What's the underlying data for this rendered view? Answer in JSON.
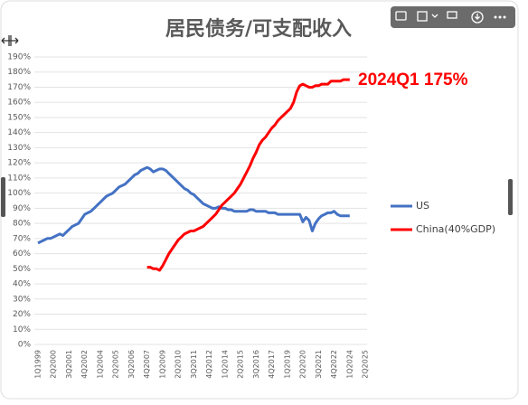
{
  "chart_data": {
    "type": "line",
    "title": "居民债务/可支配收入",
    "annotation": "2024Q1 175%",
    "categories": [
      "1Q1999",
      null,
      null,
      null,
      null,
      "2Q2000",
      null,
      null,
      null,
      null,
      "3Q2001",
      null,
      null,
      null,
      null,
      "4Q2002",
      null,
      null,
      null,
      null,
      "1Q2004",
      null,
      null,
      null,
      null,
      "2Q2005",
      null,
      null,
      null,
      null,
      "3Q2006",
      null,
      null,
      null,
      null,
      "4Q2007",
      null,
      null,
      null,
      null,
      "1Q2009",
      null,
      null,
      null,
      null,
      "2Q2010",
      null,
      null,
      null,
      null,
      "3Q2011",
      null,
      null,
      null,
      null,
      "4Q2012",
      null,
      null,
      null,
      null,
      "1Q2014",
      null,
      null,
      null,
      null,
      "2Q2015",
      null,
      null,
      null,
      null,
      "3Q2016",
      null,
      null,
      null,
      null,
      "4Q2017",
      null,
      null,
      null,
      null,
      "1Q2019",
      null,
      null,
      null,
      null,
      "2Q2020",
      null,
      null,
      null,
      null,
      "3Q2021",
      null,
      null,
      null,
      null,
      "4Q2022",
      null,
      null,
      null,
      null,
      "1Q2024",
      null,
      null,
      null,
      null,
      "2Q2025"
    ],
    "series": [
      {
        "name": "US",
        "color": "#4472c4",
        "values": [
          67,
          68,
          69,
          70,
          70,
          71,
          72,
          73,
          72,
          74,
          76,
          78,
          79,
          80,
          83,
          86,
          87,
          88,
          90,
          92,
          94,
          96,
          98,
          99,
          100,
          102,
          104,
          105,
          106,
          108,
          110,
          112,
          113,
          115,
          116,
          117,
          116,
          114,
          115,
          116,
          116,
          115,
          113,
          111,
          109,
          107,
          105,
          103,
          102,
          100,
          99,
          97,
          95,
          93,
          92,
          91,
          90,
          90,
          91,
          90,
          90,
          89,
          89,
          88,
          88,
          88,
          88,
          88,
          89,
          89,
          88,
          88,
          88,
          88,
          87,
          87,
          87,
          86,
          86,
          86,
          86,
          86,
          86,
          86,
          86,
          81,
          84,
          82,
          75,
          80,
          83,
          85,
          86,
          87,
          87,
          88,
          86,
          85,
          85,
          85,
          85,
          null,
          null,
          null,
          null,
          null
        ]
      },
      {
        "name": "China(40%GDP)",
        "color": "#ff0000",
        "values": [
          null,
          null,
          null,
          null,
          null,
          null,
          null,
          null,
          null,
          null,
          null,
          null,
          null,
          null,
          null,
          null,
          null,
          null,
          null,
          null,
          null,
          null,
          null,
          null,
          null,
          null,
          null,
          null,
          null,
          null,
          null,
          null,
          null,
          null,
          null,
          51,
          51,
          50,
          50,
          49,
          52,
          56,
          60,
          63,
          66,
          69,
          71,
          73,
          74,
          75,
          75,
          76,
          77,
          78,
          80,
          82,
          84,
          86,
          89,
          92,
          94,
          96,
          98,
          100,
          103,
          106,
          110,
          114,
          118,
          123,
          127,
          132,
          135,
          137,
          140,
          143,
          145,
          148,
          150,
          152,
          154,
          156,
          160,
          167,
          171,
          172,
          171,
          170,
          170,
          171,
          171,
          172,
          172,
          172,
          174,
          174,
          174,
          174,
          175,
          175,
          175,
          null,
          null,
          null,
          null,
          null
        ]
      }
    ],
    "ylim": [
      0,
      190
    ],
    "yticks": [
      {
        "value": 0,
        "label": "0%"
      },
      {
        "value": 10,
        "label": "10%"
      },
      {
        "value": 20,
        "label": "20%"
      },
      {
        "value": 30,
        "label": "30%"
      },
      {
        "value": 40,
        "label": "40%"
      },
      {
        "value": 50,
        "label": "50%"
      },
      {
        "value": 60,
        "label": "60%"
      },
      {
        "value": 70,
        "label": "70%"
      },
      {
        "value": 80,
        "label": "80%"
      },
      {
        "value": 90,
        "label": "90%"
      },
      {
        "value": 100,
        "label": "100%"
      },
      {
        "value": 110,
        "label": "110%"
      },
      {
        "value": 120,
        "label": "120%"
      },
      {
        "value": 130,
        "label": "130%"
      },
      {
        "value": 140,
        "label": "140%"
      },
      {
        "value": 150,
        "label": "150%"
      },
      {
        "value": 160,
        "label": "160%"
      },
      {
        "value": 170,
        "label": "170%"
      },
      {
        "value": 180,
        "label": "180%"
      },
      {
        "value": 190,
        "label": "190%"
      }
    ],
    "grid": true
  }
}
